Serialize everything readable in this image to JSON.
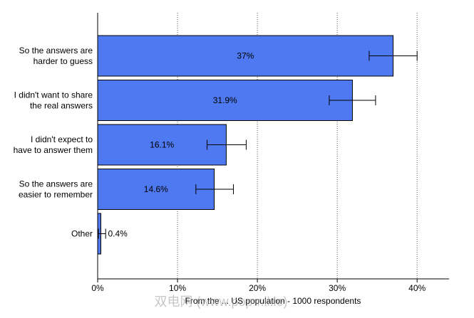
{
  "chart_data": {
    "type": "bar",
    "orientation": "horizontal",
    "categories": [
      [
        "So the answers are",
        "harder to guess"
      ],
      [
        "I didn't want to share",
        "the real answers"
      ],
      [
        "I didn't expect to",
        "have to answer them"
      ],
      [
        "So the answers are",
        "easier to remember"
      ],
      [
        "Other"
      ]
    ],
    "values": [
      37,
      31.9,
      16.1,
      14.6,
      0.4
    ],
    "value_labels": [
      "37%",
      "31.9%",
      "16.1%",
      "14.6%",
      "0.4%"
    ],
    "error_bars": [
      [
        34,
        40
      ],
      [
        29,
        34.8
      ],
      [
        13.7,
        18.6
      ],
      [
        12.3,
        17
      ],
      [
        0.1,
        1
      ]
    ],
    "xlim": [
      0,
      44
    ],
    "xticks": [
      0,
      10,
      20,
      30,
      40
    ],
    "xtick_labels": [
      "0%",
      "10%",
      "20%",
      "30%",
      "40%"
    ],
    "grid": "vertical-dotted",
    "bar_color": "#4f79f0",
    "title": "",
    "xlabel": "",
    "ylabel": ""
  },
  "footer": {
    "text": "From the ... US population - 1000 respondents"
  },
  "watermark": {
    "text": "双电网 (www.pop-r.il.le)"
  }
}
